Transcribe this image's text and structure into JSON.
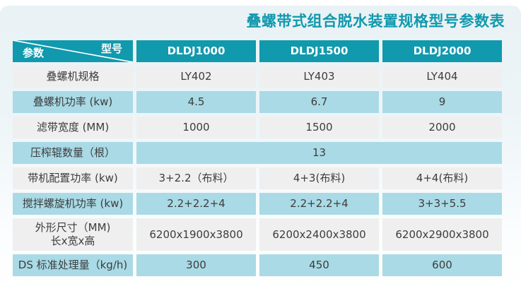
{
  "page": {
    "title": "叠螺带式组合脱水装置规格型号参数表"
  },
  "colors": {
    "header_teal": "#1199ae",
    "row_blue": "#a9dae6",
    "row_grey": "#efefef",
    "title_teal": "#1199ae"
  },
  "table": {
    "corner": {
      "row_axis_label": "参数",
      "col_axis_label": "型号"
    },
    "model_columns": [
      "DLDJ1000",
      "DLDJ1500",
      "DLDJ2000"
    ],
    "rows": [
      {
        "label": "叠螺机规格",
        "shade": "grey",
        "values": [
          "LY402",
          "LY403",
          "LY404"
        ]
      },
      {
        "label": "叠螺机功率 (kw)",
        "shade": "blue",
        "values": [
          "4.5",
          "6.7",
          "9"
        ]
      },
      {
        "label": "滤带宽度 (MM)",
        "shade": "grey",
        "values": [
          "1000",
          "1500",
          "2000"
        ]
      },
      {
        "label": "压榨辊数量（根）",
        "shade": "blue",
        "merged": true,
        "values": [
          "13"
        ]
      },
      {
        "label": "带机配置功率 (kw)",
        "shade": "grey",
        "values": [
          "3+2.2（布料）",
          "4+3(布料)",
          "4+4(布料)"
        ]
      },
      {
        "label": "搅拌螺旋机功率 (kw)",
        "shade": "blue",
        "values": [
          "2.2+2.2+4",
          "2.2+2.2+4",
          "3+3+5.5"
        ]
      },
      {
        "label": "外形尺寸（MM)",
        "label_line2": "长x宽x高",
        "tall": true,
        "shade": "grey",
        "values": [
          "6200x1900x3800",
          "6200x2400x3800",
          "6200x2900x3800"
        ]
      },
      {
        "label": "DS 标准处理量（kg/h)",
        "shade": "blue",
        "values": [
          "300",
          "450",
          "600"
        ]
      }
    ]
  }
}
